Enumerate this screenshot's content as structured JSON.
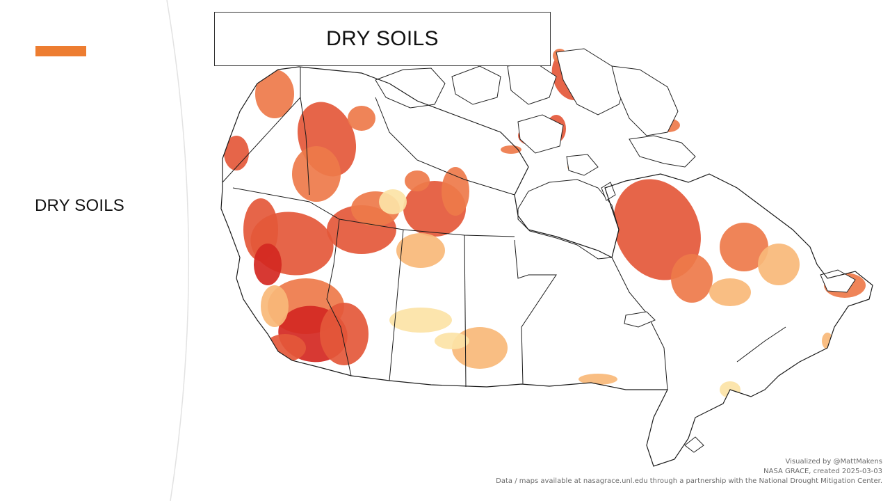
{
  "slide": {
    "side_title": "DRY SOILS",
    "accent_color": "#ED7D31"
  },
  "map": {
    "title": "DRY SOILS",
    "region": "Canada",
    "layer": "Dry soils (NASA GRACE soil moisture drought indicator)",
    "palette": {
      "low": "#FCE3A6",
      "moderate": "#F8B878",
      "high": "#EE7A4A",
      "very_high": "#E4583A",
      "extreme": "#D42822"
    },
    "credits": {
      "line1": "Visualized by @MattMakens",
      "line2": "NASA GRACE, created 2025-03-03",
      "line3": "Data / maps available at nasagrace.unl.edu through a partnership with the National Drought Mitigation Center."
    }
  }
}
